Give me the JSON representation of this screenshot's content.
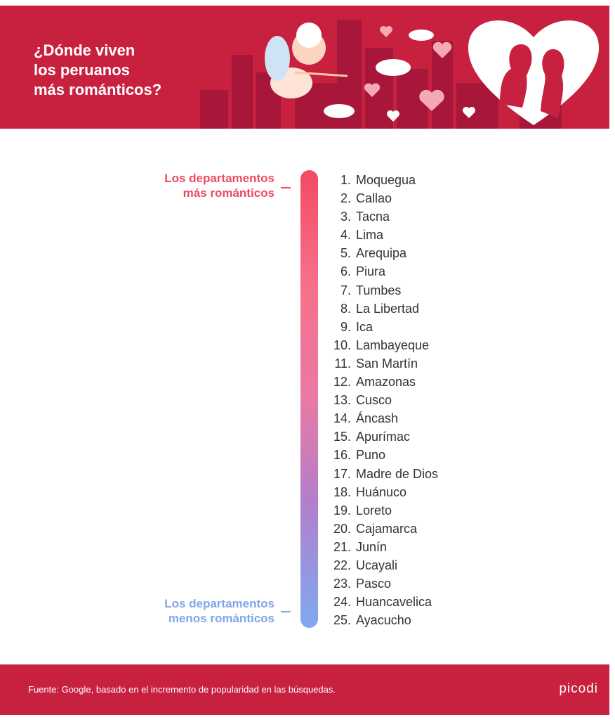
{
  "header": {
    "title_lines": [
      "¿Dónde viven",
      "los peruanos",
      "más románticos?"
    ]
  },
  "scale": {
    "top_label_lines": [
      "Los departamentos",
      "más románticos"
    ],
    "bottom_label_lines": [
      "Los departamentos",
      "menos románticos"
    ]
  },
  "ranking": [
    {
      "rank": "1.",
      "name": "Moquegua"
    },
    {
      "rank": "2.",
      "name": "Callao"
    },
    {
      "rank": "3.",
      "name": "Tacna"
    },
    {
      "rank": "4.",
      "name": "Lima"
    },
    {
      "rank": "5.",
      "name": "Arequipa"
    },
    {
      "rank": "6.",
      "name": "Piura"
    },
    {
      "rank": "7.",
      "name": "Tumbes"
    },
    {
      "rank": "8.",
      "name": "La Libertad"
    },
    {
      "rank": "9.",
      "name": "Ica"
    },
    {
      "rank": "10.",
      "name": "Lambayeque"
    },
    {
      "rank": "11.",
      "name": "San Martín"
    },
    {
      "rank": "12.",
      "name": "Amazonas"
    },
    {
      "rank": "13.",
      "name": "Cusco"
    },
    {
      "rank": "14.",
      "name": "Áncash"
    },
    {
      "rank": "15.",
      "name": "Apurímac"
    },
    {
      "rank": "16.",
      "name": "Puno"
    },
    {
      "rank": "17.",
      "name": "Madre de Dios"
    },
    {
      "rank": "18.",
      "name": "Huánuco"
    },
    {
      "rank": "19.",
      "name": "Loreto"
    },
    {
      "rank": "20.",
      "name": "Cajamarca"
    },
    {
      "rank": "21.",
      "name": "Junín"
    },
    {
      "rank": "22.",
      "name": "Ucayali"
    },
    {
      "rank": "23.",
      "name": "Pasco"
    },
    {
      "rank": "24.",
      "name": "Huancavelica"
    },
    {
      "rank": "25.",
      "name": "Ayacucho"
    }
  ],
  "footer": {
    "source": "Fuente: Google, basado en el incremento de popularidad en las búsquedas.",
    "brand": "picodi"
  }
}
